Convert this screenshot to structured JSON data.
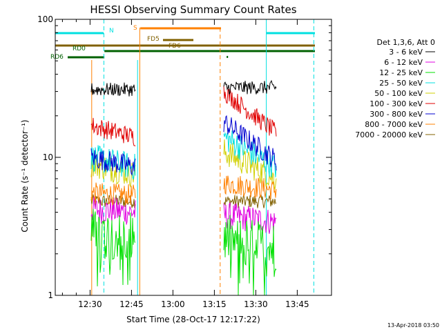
{
  "chart_data": {
    "type": "line",
    "title": "HESSI Observing Summary Count Rates",
    "xlabel": "Start Time (28-Oct-17 12:17:22)",
    "ylabel": "Count Rate (s⁻¹ detector⁻¹)",
    "yscale": "log",
    "ylim": [
      1,
      100
    ],
    "xlim_minutes_after_start": [
      0,
      100
    ],
    "x_tick_labels": [
      "12:30",
      "12:45",
      "13:00",
      "13:15",
      "13:30",
      "13:45"
    ],
    "x_tick_minutes_after_start": [
      12.6,
      27.6,
      42.6,
      57.6,
      72.6,
      87.6
    ],
    "y_tick_labels": [
      "1",
      "10",
      "100"
    ],
    "y_tick_values": [
      1,
      10,
      100
    ],
    "legend": {
      "header": "Det 1,3,6, Att 0",
      "placement": "right",
      "entries": [
        {
          "label": "3 - 6 keV",
          "color": "#000000"
        },
        {
          "label": "6 - 12 keV",
          "color": "#e000e0"
        },
        {
          "label": "12 - 25 keV",
          "color": "#00e000"
        },
        {
          "label": "25 - 50 keV",
          "color": "#00e0e0"
        },
        {
          "label": "50 - 100 keV",
          "color": "#d0d000"
        },
        {
          "label": "100 - 300 keV",
          "color": "#e00000"
        },
        {
          "label": "300 - 800 keV",
          "color": "#0000d0"
        },
        {
          "label": "800 - 7000 keV",
          "color": "#ff8000"
        },
        {
          "label": "7000 - 20000 keV",
          "color": "#806000"
        }
      ]
    },
    "series": [
      {
        "name": "3 - 6 keV",
        "color": "#000000",
        "segments": [
          {
            "x0": 13,
            "x1": 29,
            "y0": 31,
            "y1": 31
          },
          {
            "x0": 61,
            "x1": 80,
            "y0": 32,
            "y1": 32
          }
        ]
      },
      {
        "name": "6 - 12 keV",
        "color": "#e000e0",
        "segments": [
          {
            "x0": 13,
            "x1": 29,
            "y0": 4.2,
            "y1": 4.0
          },
          {
            "x0": 61,
            "x1": 80,
            "y0": 3.8,
            "y1": 3.4
          }
        ]
      },
      {
        "name": "12 - 25 keV",
        "color": "#00e000",
        "segments": [
          {
            "x0": 13,
            "x1": 29,
            "y0": 2.9,
            "y1": 2.6
          },
          {
            "x0": 61,
            "x1": 80,
            "y0": 2.6,
            "y1": 2.2
          }
        ]
      },
      {
        "name": "25 - 50 keV",
        "color": "#00e0e0",
        "segments": [
          {
            "x0": 13,
            "x1": 29,
            "y0": 10,
            "y1": 8.5
          },
          {
            "x0": 61,
            "x1": 80,
            "y0": 14,
            "y1": 8.5
          }
        ]
      },
      {
        "name": "50 - 100 keV",
        "color": "#d0d000",
        "segments": [
          {
            "x0": 13,
            "x1": 29,
            "y0": 9,
            "y1": 7.5
          },
          {
            "x0": 61,
            "x1": 80,
            "y0": 11,
            "y1": 7
          }
        ]
      },
      {
        "name": "100 - 300 keV",
        "color": "#e00000",
        "segments": [
          {
            "x0": 13,
            "x1": 29,
            "y0": 17,
            "y1": 14
          },
          {
            "x0": 61,
            "x1": 80,
            "y0": 30,
            "y1": 15
          }
        ]
      },
      {
        "name": "300 - 800 keV",
        "color": "#0000d0",
        "segments": [
          {
            "x0": 13,
            "x1": 29,
            "y0": 10,
            "y1": 8.5
          },
          {
            "x0": 61,
            "x1": 80,
            "y0": 18,
            "y1": 9.5
          }
        ]
      },
      {
        "name": "800 - 7000 keV",
        "color": "#ff8000",
        "segments": [
          {
            "x0": 13,
            "x1": 29,
            "y0": 5.5,
            "y1": 5.3
          },
          {
            "x0": 61,
            "x1": 80,
            "y0": 6.5,
            "y1": 5.8
          }
        ]
      },
      {
        "name": "7000 - 20000 keV",
        "color": "#806000",
        "segments": [
          {
            "x0": 13,
            "x1": 29,
            "y0": 4.8,
            "y1": 4.8
          },
          {
            "x0": 61,
            "x1": 80,
            "y0": 4.8,
            "y1": 4.8
          }
        ]
      }
    ],
    "vertical_markers": [
      {
        "x": 13.2,
        "color": "#ff8000",
        "style": "solid"
      },
      {
        "x": 17.6,
        "color": "#00e0e0",
        "style": "dashed"
      },
      {
        "x": 29.8,
        "color": "#00e0e0",
        "style": "solid"
      },
      {
        "x": 30.6,
        "color": "#ff8000",
        "style": "solid"
      },
      {
        "x": 59.7,
        "color": "#ff8000",
        "style": "dashed"
      },
      {
        "x": 76.4,
        "color": "#00e0e0",
        "style": "solid"
      },
      {
        "x": 93.6,
        "color": "#00e0e0",
        "style": "dashed"
      }
    ],
    "flag_bars": [
      {
        "label": "N",
        "color": "#00e0e0",
        "intervals": [
          [
            0,
            17.5
          ],
          [
            76.4,
            94
          ]
        ]
      },
      {
        "label": "S",
        "color": "#ff8000",
        "intervals": [
          [
            30.8,
            60
          ]
        ]
      },
      {
        "label": "FD5",
        "color": "#806000",
        "intervals": [
          [
            39,
            50
          ]
        ]
      },
      {
        "label": "FD6",
        "color": "#806000",
        "intervals": [
          [
            0,
            94
          ]
        ]
      },
      {
        "label": "RD0",
        "color": "#006000",
        "intervals": [
          [
            17.8,
            94
          ]
        ]
      },
      {
        "label": "RD6",
        "color": "#006000",
        "intervals": [
          [
            4.5,
            17.8
          ]
        ]
      }
    ]
  },
  "footer_timestamp": "13-Apr-2018 03:50"
}
